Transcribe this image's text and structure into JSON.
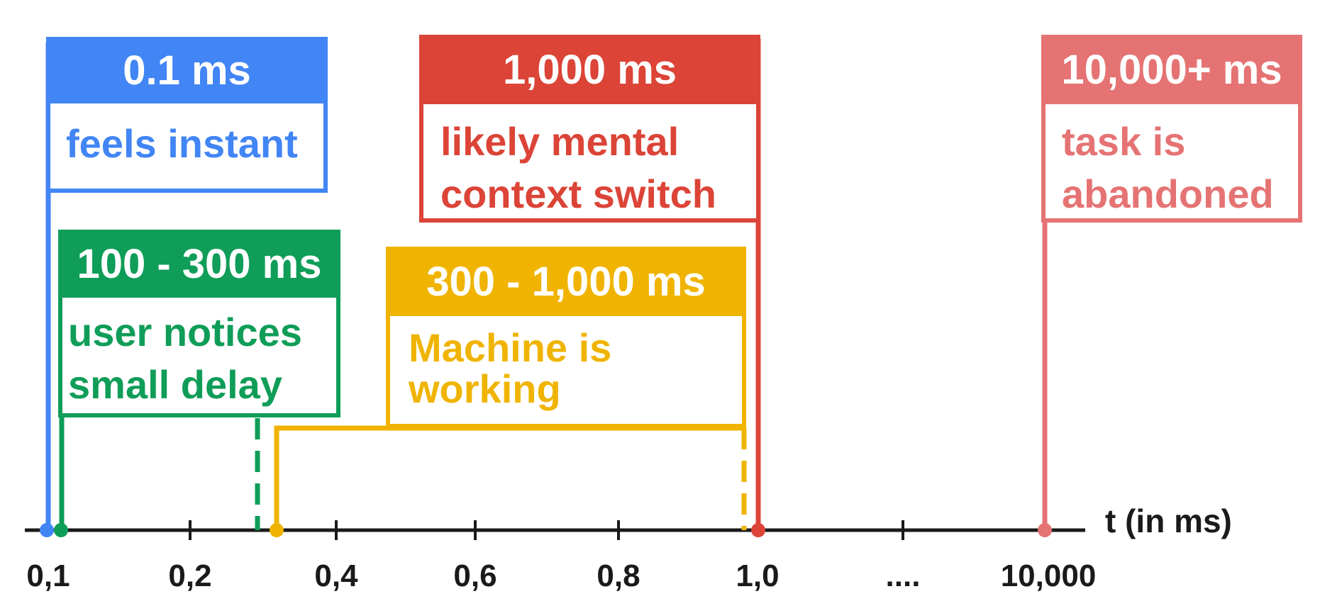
{
  "colors": {
    "blue": "#4285F4",
    "green": "#0F9D58",
    "yellow": "#F0B400",
    "red": "#DB4437",
    "pink": "#E57373",
    "axis": "#1a1a1a"
  },
  "axis": {
    "title": "t (in ms)",
    "tick_labels": [
      "0,1",
      "0,2",
      "0,4",
      "0,6",
      "0,8",
      "1,0",
      "....",
      "10,000"
    ]
  },
  "thresholds": [
    {
      "id": "instant",
      "heading": "0.1 ms",
      "description": "feels instant",
      "color": "blue"
    },
    {
      "id": "small-delay",
      "heading": "100 - 300 ms",
      "description": "user notices\nsmall delay",
      "color": "green"
    },
    {
      "id": "working",
      "heading": "300 - 1,000 ms",
      "description": "Machine is\nworking",
      "color": "yellow"
    },
    {
      "id": "context-switch",
      "heading": "1,000 ms",
      "description": "likely mental\ncontext switch",
      "color": "red"
    },
    {
      "id": "abandoned",
      "heading": "10,000+ ms",
      "description": "task is\nabandoned",
      "color": "pink"
    }
  ]
}
